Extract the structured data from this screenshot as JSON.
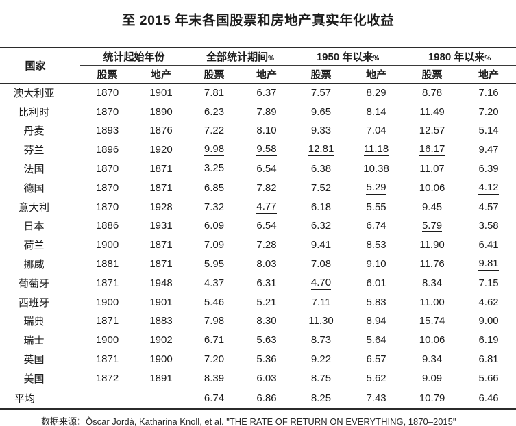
{
  "title": "至 2015 年末各国股票和房地产真实年化收益",
  "source": "数据来源：Òscar Jordà, Katharina Knoll, et al. \"THE RATE OF RETURN ON EVERYTHING, 1870–2015\"",
  "colors": {
    "text": "#1c1c1c",
    "rule": "#2b2b2b",
    "background": "#ffffff"
  },
  "chart_data": {
    "type": "table",
    "title": "至 2015 年末各国股票和房地产真实年化收益",
    "country_header": "国家",
    "groups": [
      {
        "label": "统计起始年份",
        "pct": ""
      },
      {
        "label": "全部统计期间",
        "pct": "%"
      },
      {
        "label": "1950 年以来",
        "pct": "%"
      },
      {
        "label": "1980 年以来",
        "pct": "%"
      }
    ],
    "subheaders": [
      "股票",
      "地产",
      "股票",
      "地产",
      "股票",
      "地产",
      "股票",
      "地产"
    ],
    "rows": [
      {
        "country": "澳大利亚",
        "values": [
          "1870",
          "1901",
          "7.81",
          "6.37",
          "7.57",
          "8.29",
          "8.78",
          "7.16"
        ],
        "underline": []
      },
      {
        "country": "比利时",
        "values": [
          "1870",
          "1890",
          "6.23",
          "7.89",
          "9.65",
          "8.14",
          "11.49",
          "7.20"
        ],
        "underline": []
      },
      {
        "country": "丹麦",
        "values": [
          "1893",
          "1876",
          "7.22",
          "8.10",
          "9.33",
          "7.04",
          "12.57",
          "5.14"
        ],
        "underline": []
      },
      {
        "country": "芬兰",
        "values": [
          "1896",
          "1920",
          "9.98",
          "9.58",
          "12.81",
          "11.18",
          "16.17",
          "9.47"
        ],
        "underline": [
          2,
          3,
          4,
          5,
          6
        ]
      },
      {
        "country": "法国",
        "values": [
          "1870",
          "1871",
          "3.25",
          "6.54",
          "6.38",
          "10.38",
          "11.07",
          "6.39"
        ],
        "underline": [
          2
        ]
      },
      {
        "country": "德国",
        "values": [
          "1870",
          "1871",
          "6.85",
          "7.82",
          "7.52",
          "5.29",
          "10.06",
          "4.12"
        ],
        "underline": [
          5,
          7
        ]
      },
      {
        "country": "意大利",
        "values": [
          "1870",
          "1928",
          "7.32",
          "4.77",
          "6.18",
          "5.55",
          "9.45",
          "4.57"
        ],
        "underline": [
          3
        ]
      },
      {
        "country": "日本",
        "values": [
          "1886",
          "1931",
          "6.09",
          "6.54",
          "6.32",
          "6.74",
          "5.79",
          "3.58"
        ],
        "underline": [
          6
        ]
      },
      {
        "country": "荷兰",
        "values": [
          "1900",
          "1871",
          "7.09",
          "7.28",
          "9.41",
          "8.53",
          "11.90",
          "6.41"
        ],
        "underline": []
      },
      {
        "country": "挪威",
        "values": [
          "1881",
          "1871",
          "5.95",
          "8.03",
          "7.08",
          "9.10",
          "11.76",
          "9.81"
        ],
        "underline": [
          7
        ]
      },
      {
        "country": "葡萄牙",
        "values": [
          "1871",
          "1948",
          "4.37",
          "6.31",
          "4.70",
          "6.01",
          "8.34",
          "7.15"
        ],
        "underline": [
          4
        ]
      },
      {
        "country": "西班牙",
        "values": [
          "1900",
          "1901",
          "5.46",
          "5.21",
          "7.11",
          "5.83",
          "11.00",
          "4.62"
        ],
        "underline": []
      },
      {
        "country": "瑞典",
        "values": [
          "1871",
          "1883",
          "7.98",
          "8.30",
          "11.30",
          "8.94",
          "15.74",
          "9.00"
        ],
        "underline": []
      },
      {
        "country": "瑞士",
        "values": [
          "1900",
          "1902",
          "6.71",
          "5.63",
          "8.73",
          "5.64",
          "10.06",
          "6.19"
        ],
        "underline": []
      },
      {
        "country": "英国",
        "values": [
          "1871",
          "1900",
          "7.20",
          "5.36",
          "9.22",
          "6.57",
          "9.34",
          "6.81"
        ],
        "underline": []
      },
      {
        "country": "美国",
        "values": [
          "1872",
          "1891",
          "8.39",
          "6.03",
          "8.75",
          "5.62",
          "9.09",
          "5.66"
        ],
        "underline": []
      }
    ],
    "average": {
      "label": "平均",
      "values": [
        "",
        "",
        "6.74",
        "6.86",
        "8.25",
        "7.43",
        "10.79",
        "6.46"
      ]
    }
  }
}
